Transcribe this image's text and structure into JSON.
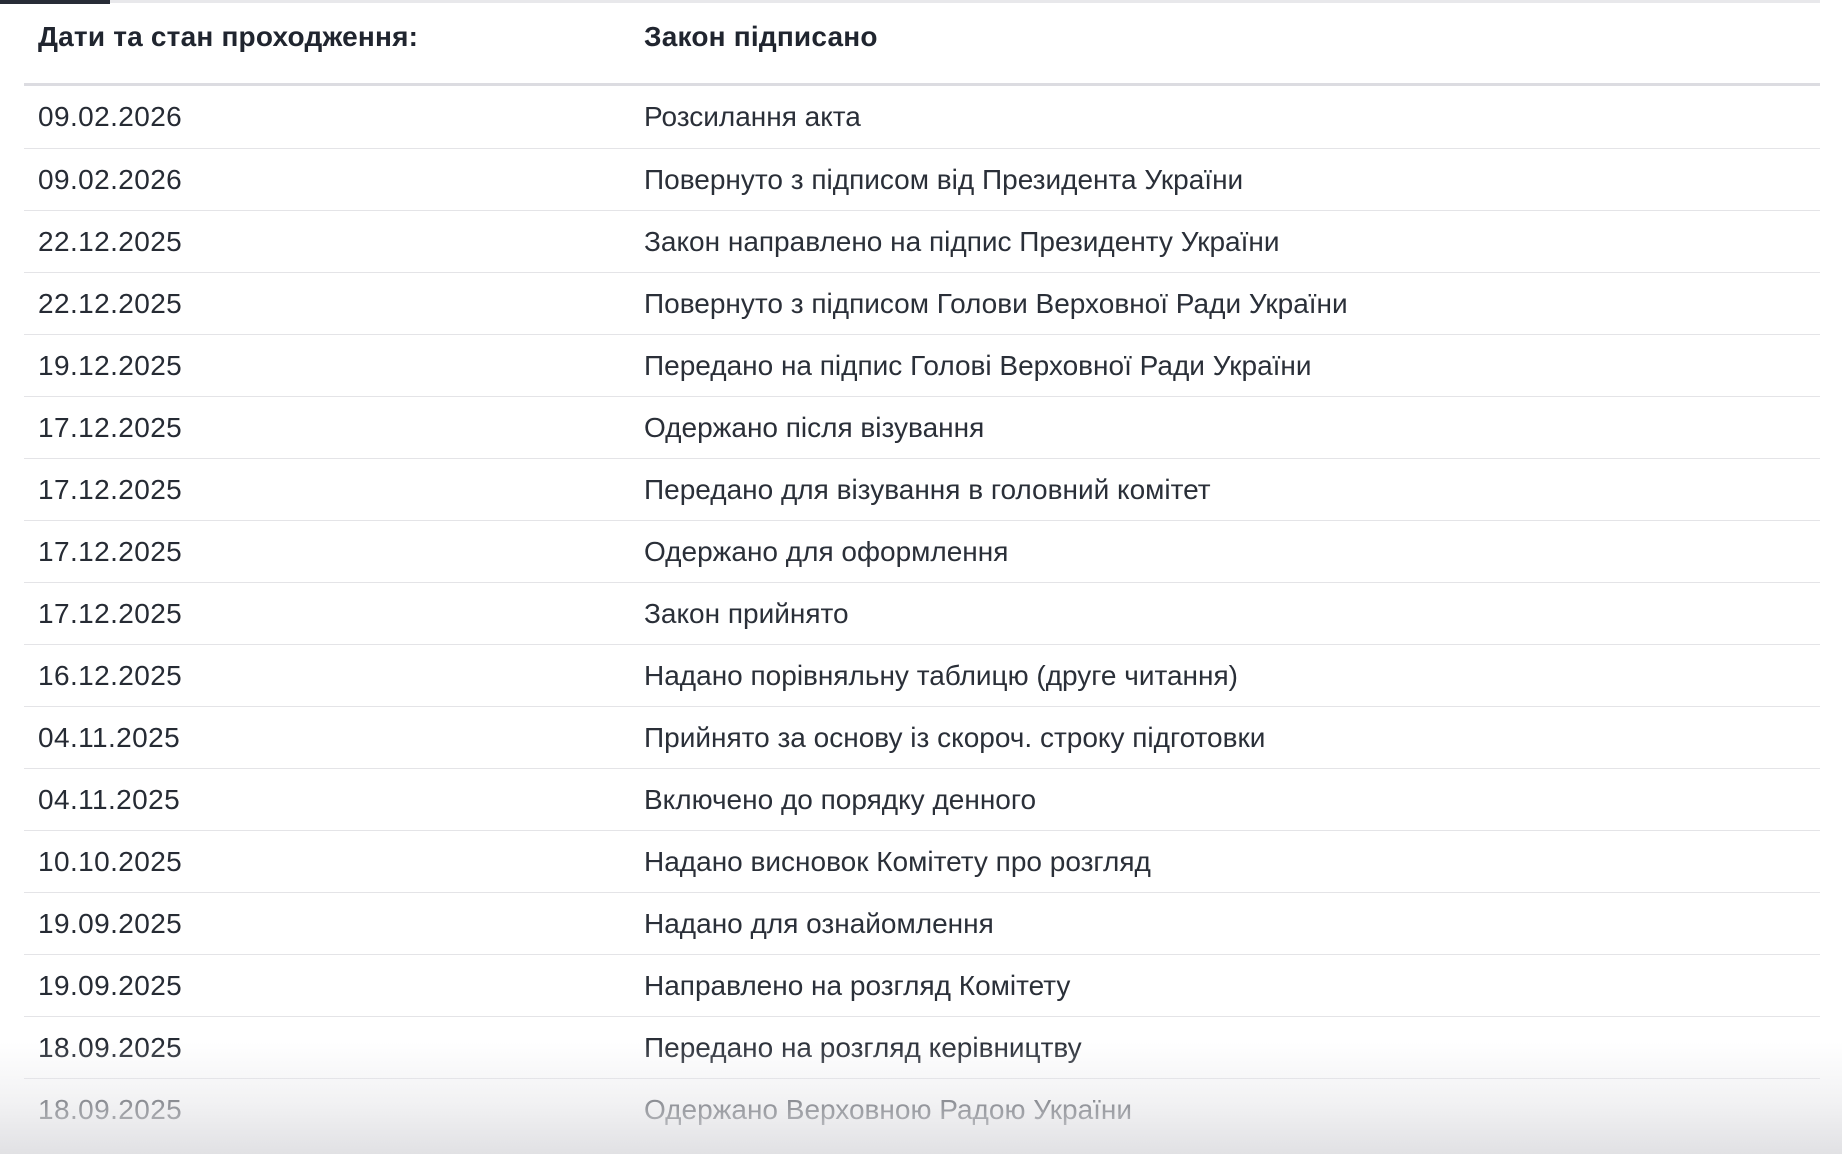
{
  "table": {
    "header": {
      "col1": "Дати та стан проходження:",
      "col2": "Закон підписано"
    },
    "rows": [
      {
        "date": "09.02.2026",
        "status": "Розсилання акта"
      },
      {
        "date": "09.02.2026",
        "status": "Повернуто з підписом від Президента України"
      },
      {
        "date": "22.12.2025",
        "status": "Закон направлено на підпис Президенту України"
      },
      {
        "date": "22.12.2025",
        "status": "Повернуто з підписом Голови Верховної Ради України"
      },
      {
        "date": "19.12.2025",
        "status": "Передано на підпис Голові Верховної Ради України"
      },
      {
        "date": "17.12.2025",
        "status": "Одержано після візування"
      },
      {
        "date": "17.12.2025",
        "status": "Передано для візування в головний комітет"
      },
      {
        "date": "17.12.2025",
        "status": "Одержано для оформлення"
      },
      {
        "date": "17.12.2025",
        "status": "Закон прийнято"
      },
      {
        "date": "16.12.2025",
        "status": "Надано порівняльну таблицю (друге читання)"
      },
      {
        "date": "04.11.2025",
        "status": "Прийнято за основу із скороч. строку підготовки"
      },
      {
        "date": "04.11.2025",
        "status": "Включено до порядку денного"
      },
      {
        "date": "10.10.2025",
        "status": "Надано висновок Комітету про розгляд"
      },
      {
        "date": "19.09.2025",
        "status": "Надано для ознайомлення"
      },
      {
        "date": "19.09.2025",
        "status": "Направлено на розгляд Комітету"
      },
      {
        "date": "18.09.2025",
        "status": "Передано на розгляд керівництву"
      },
      {
        "date": "18.09.2025",
        "status": "Одержано Верховною Радою України"
      }
    ]
  },
  "colors": {
    "text": "#272c36",
    "header_text": "#20252f",
    "row_separator": "#e4e4e7",
    "header_separator": "#dcdce1",
    "top_line": "#e8e8eb",
    "tab_indicator": "#272c36",
    "bottom_fade": "#e1e1e4",
    "background": "#ffffff"
  }
}
